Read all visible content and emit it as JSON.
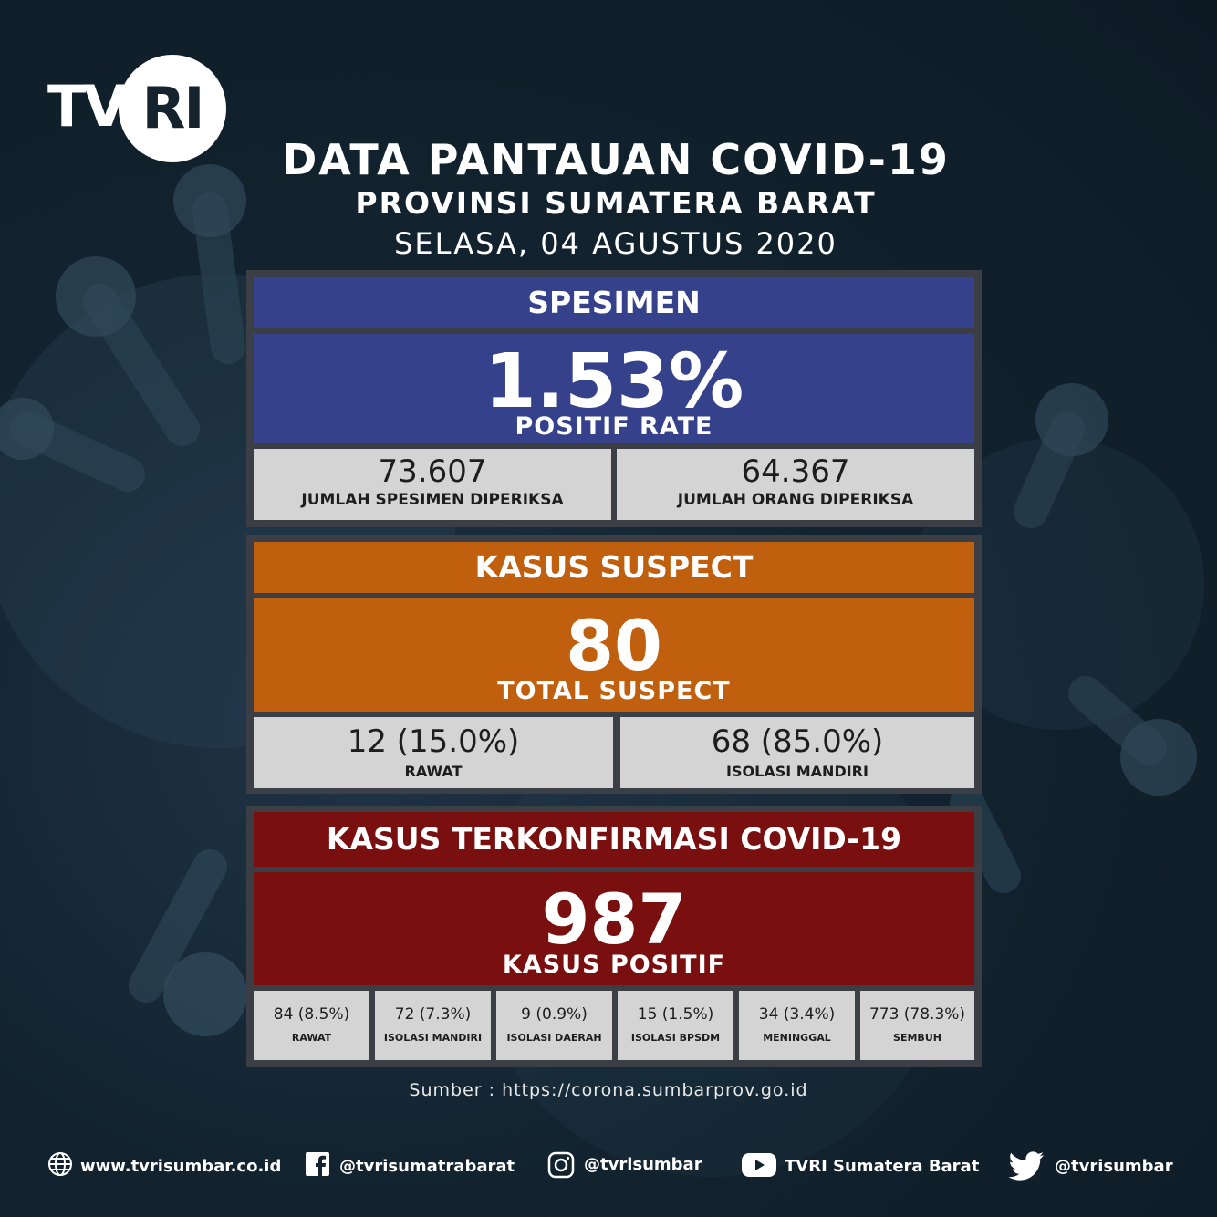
{
  "brand": {
    "logo_text_left": "TV",
    "logo_text_right": "RI"
  },
  "header": {
    "title": "DATA PANTAUAN COVID-19",
    "subtitle": "PROVINSI SUMATERA BARAT",
    "date": "SELASA, 04 AGUSTUS 2020"
  },
  "colors": {
    "spesimen": "#35418a",
    "suspect": "#c0600f",
    "konfirmasi": "#7a0f0f",
    "cell": "#d4d4d4"
  },
  "spesimen": {
    "heading": "SPESIMEN",
    "rate": "1.53%",
    "rate_label": "POSITIF RATE",
    "cells": [
      {
        "value": "73.607",
        "label": "JUMLAH SPESIMEN DIPERIKSA"
      },
      {
        "value": "64.367",
        "label": "JUMLAH ORANG DIPERIKSA"
      }
    ]
  },
  "suspect": {
    "heading": "KASUS SUSPECT",
    "total": "80",
    "total_label": "TOTAL SUSPECT",
    "cells": [
      {
        "value": "12 (15.0%)",
        "label": "RAWAT"
      },
      {
        "value": "68 (85.0%)",
        "label": "ISOLASI MANDIRI"
      }
    ]
  },
  "konfirmasi": {
    "heading": "KASUS TERKONFIRMASI COVID-19",
    "total": "987",
    "total_label": "KASUS POSITIF",
    "cells": [
      {
        "value": "84 (8.5%)",
        "label": "RAWAT"
      },
      {
        "value": "72 (7.3%)",
        "label": "ISOLASI MANDIRI"
      },
      {
        "value": "9 (0.9%)",
        "label": "ISOLASI DAERAH"
      },
      {
        "value": "15 (1.5%)",
        "label": "ISOLASI BPSDM"
      },
      {
        "value": "34 (3.4%)",
        "label": "MENINGGAL"
      },
      {
        "value": "773 (78.3%)",
        "label": "SEMBUH"
      }
    ]
  },
  "source": "Sumber : https://corona.sumbarprov.go.id",
  "footer": {
    "website": "www.tvrisumbar.co.id",
    "facebook": "@tvrisumatrabarat",
    "instagram": "@tvrisumbar",
    "youtube": "TVRI Sumatera Barat",
    "twitter": "@tvrisumbar"
  }
}
